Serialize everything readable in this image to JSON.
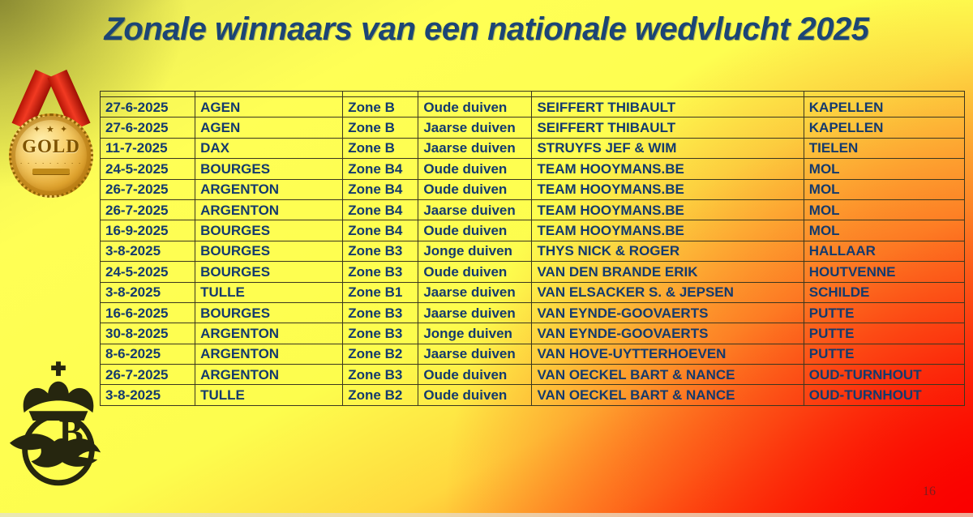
{
  "slide": {
    "title": "Zonale winnaars van een nationale wedvlucht 2025",
    "page_number": "16"
  },
  "medal": {
    "label": "GOLD",
    "stars": "✦ ★ ✦",
    "dots": "∙ ∙ ∙ ∙ ∙ ∙ ∙ ∙ ∙"
  },
  "logo": {
    "letter": "B",
    "description": "crown-circle-dove emblem"
  },
  "colors": {
    "title_text": "#1c4575",
    "table_text": "#143a6d",
    "table_border": "#3a361f",
    "background_topleft_olive": "#c9c952",
    "background_yellow": "#ffff55",
    "background_orange": "#ff9a28",
    "background_red": "#fb0000",
    "ribbon_red": "#f23a22",
    "medal_gold": "#e2a52e",
    "page_number_color": "#7e1d1d"
  },
  "table": {
    "column_keys": [
      "date",
      "race",
      "zone",
      "category",
      "winner",
      "town"
    ],
    "header_row_empty": true,
    "rows": [
      {
        "date": "27-6-2025",
        "race": "AGEN",
        "zone": "Zone B",
        "category": "Oude duiven",
        "winner": "SEIFFERT THIBAULT",
        "town": "KAPELLEN"
      },
      {
        "date": "27-6-2025",
        "race": "AGEN",
        "zone": "Zone B",
        "category": "Jaarse duiven",
        "winner": "SEIFFERT THIBAULT",
        "town": "KAPELLEN"
      },
      {
        "date": "11-7-2025",
        "race": "DAX",
        "zone": "Zone B",
        "category": "Jaarse duiven",
        "winner": "STRUYFS JEF & WIM",
        "town": "TIELEN"
      },
      {
        "date": "24-5-2025",
        "race": "BOURGES",
        "zone": "Zone B4",
        "category": "Oude duiven",
        "winner": "TEAM HOOYMANS.BE",
        "town": "MOL"
      },
      {
        "date": "26-7-2025",
        "race": "ARGENTON",
        "zone": "Zone B4",
        "category": "Oude duiven",
        "winner": "TEAM HOOYMANS.BE",
        "town": "MOL"
      },
      {
        "date": "26-7-2025",
        "race": "ARGENTON",
        "zone": "Zone B4",
        "category": "Jaarse duiven",
        "winner": "TEAM HOOYMANS.BE",
        "town": "MOL"
      },
      {
        "date": "16-9-2025",
        "race": "BOURGES",
        "zone": "Zone B4",
        "category": "Oude duiven",
        "winner": "TEAM HOOYMANS.BE",
        "town": "MOL"
      },
      {
        "date": "3-8-2025",
        "race": "BOURGES",
        "zone": "Zone B3",
        "category": "Jonge duiven",
        "winner": "THYS NICK & ROGER",
        "town": "HALLAAR"
      },
      {
        "date": "24-5-2025",
        "race": "BOURGES",
        "zone": "Zone B3",
        "category": "Oude duiven",
        "winner": "VAN DEN BRANDE ERIK",
        "town": "HOUTVENNE"
      },
      {
        "date": "3-8-2025",
        "race": "TULLE",
        "zone": "Zone B1",
        "category": "Jaarse duiven",
        "winner": "VAN ELSACKER S. & JEPSEN",
        "town": "SCHILDE"
      },
      {
        "date": "16-6-2025",
        "race": "BOURGES",
        "zone": "Zone B3",
        "category": "Jaarse duiven",
        "winner": "VAN EYNDE-GOOVAERTS",
        "town": "PUTTE"
      },
      {
        "date": "30-8-2025",
        "race": "ARGENTON",
        "zone": "Zone B3",
        "category": "Jonge duiven",
        "winner": "VAN EYNDE-GOOVAERTS",
        "town": "PUTTE"
      },
      {
        "date": "8-6-2025",
        "race": "ARGENTON",
        "zone": "Zone B2",
        "category": "Jaarse duiven",
        "winner": "VAN HOVE-UYTTERHOEVEN",
        "town": "PUTTE"
      },
      {
        "date": "26-7-2025",
        "race": "ARGENTON",
        "zone": "Zone B3",
        "category": "Oude duiven",
        "winner": "VAN OECKEL BART & NANCE",
        "town": "OUD-TURNHOUT"
      },
      {
        "date": "3-8-2025",
        "race": "TULLE",
        "zone": "Zone B2",
        "category": "Oude duiven",
        "winner": "VAN OECKEL BART & NANCE",
        "town": "OUD-TURNHOUT"
      }
    ]
  }
}
